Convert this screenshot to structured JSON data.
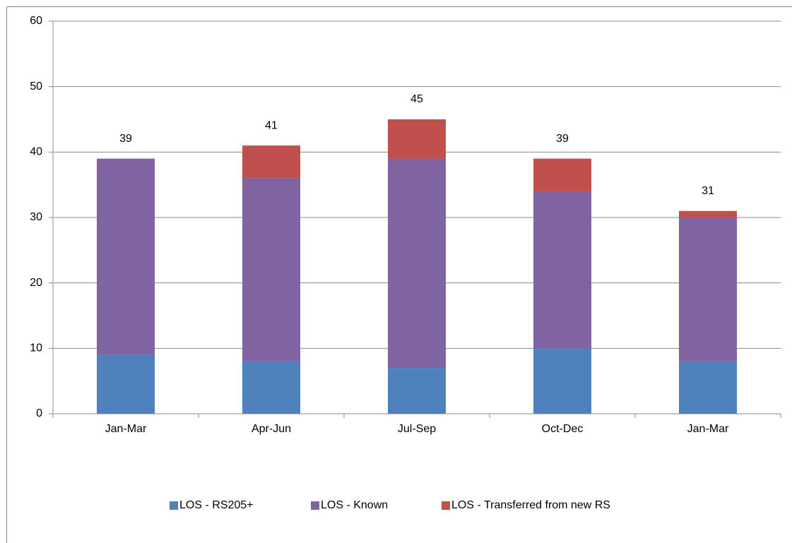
{
  "chart_data": {
    "type": "stacked_bar",
    "categories": [
      "Jan-Mar",
      "Apr-Jun",
      "Jul-Sep",
      "Oct-Dec",
      "Jan-Mar"
    ],
    "series": [
      {
        "name": "LOS - RS205+",
        "color": "#4f81bd",
        "values": [
          9,
          8,
          7,
          10,
          8
        ]
      },
      {
        "name": "LOS - Known",
        "color": "#8064a2",
        "values": [
          30,
          28,
          32,
          24,
          22
        ]
      },
      {
        "name": "LOS - Transferred from new RS",
        "color": "#c0504d",
        "values": [
          0,
          5,
          6,
          5,
          1
        ]
      }
    ],
    "totals": [
      39,
      41,
      45,
      39,
      31
    ],
    "ylim": [
      0,
      60
    ],
    "yticks": [
      0,
      10,
      20,
      30,
      40,
      50,
      60
    ],
    "grid": true,
    "legend": "bottom"
  }
}
